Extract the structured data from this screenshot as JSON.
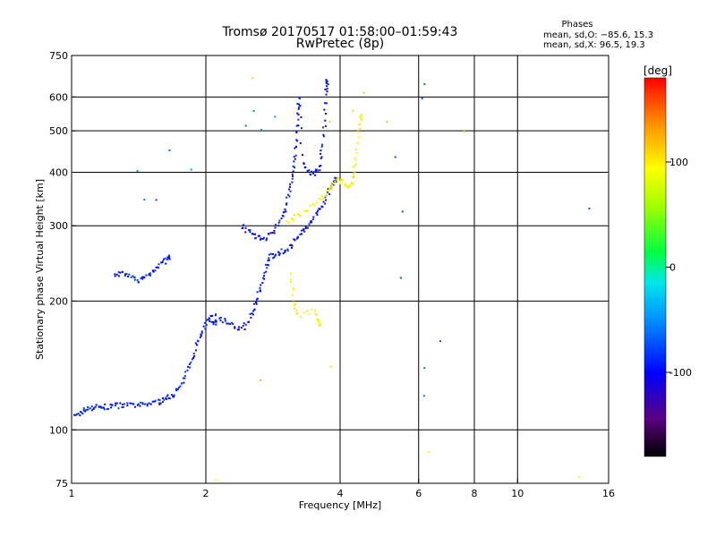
{
  "title": {
    "line1": "Tromsø 20170517 01:58:00–01:59:43",
    "line2": "RwPretec (8p)"
  },
  "stats": {
    "heading": "Phases",
    "line_o": "mean, sd,O: −85.6, 15.3",
    "line_x": "mean, sd,X:  96.5, 19.3"
  },
  "chart_data": {
    "type": "scatter",
    "xlabel": "Frequency [MHz]",
    "ylabel": "Stationary phase Virtual Height [km]",
    "x_scale": "log2",
    "y_scale": "log",
    "xlim": [
      1,
      16
    ],
    "ylim": [
      75,
      750
    ],
    "x_ticks": [
      1,
      2,
      4,
      6,
      8,
      10,
      16
    ],
    "y_ticks": [
      75,
      100,
      200,
      300,
      400,
      500,
      600,
      750
    ],
    "grid": true,
    "colorbar": {
      "label": "[deg]",
      "range": [
        -180,
        180
      ],
      "ticks": [
        100,
        0,
        -100
      ]
    },
    "series": [
      {
        "trace": "O-mode low-frequency E/F1 trace",
        "phase_deg": -90,
        "points": [
          [
            1.02,
            107
          ],
          [
            1.05,
            110
          ],
          [
            1.08,
            112
          ],
          [
            1.12,
            113
          ],
          [
            1.16,
            113
          ],
          [
            1.2,
            113
          ],
          [
            1.25,
            114
          ],
          [
            1.3,
            114
          ],
          [
            1.36,
            114
          ],
          [
            1.42,
            114
          ],
          [
            1.48,
            115
          ],
          [
            1.55,
            116
          ],
          [
            1.6,
            117
          ],
          [
            1.65,
            119
          ],
          [
            1.7,
            122
          ],
          [
            1.75,
            126
          ],
          [
            1.8,
            133
          ],
          [
            1.85,
            145
          ],
          [
            1.9,
            157
          ],
          [
            1.95,
            168
          ],
          [
            2.0,
            178
          ],
          [
            2.05,
            183
          ],
          [
            2.1,
            178
          ]
        ]
      },
      {
        "trace": "O-mode sporadic 230 km band",
        "phase_deg": -88,
        "points": [
          [
            1.25,
            232
          ],
          [
            1.3,
            231
          ],
          [
            1.35,
            228
          ],
          [
            1.4,
            224
          ],
          [
            1.45,
            226
          ],
          [
            1.5,
            232
          ],
          [
            1.55,
            240
          ],
          [
            1.6,
            246
          ],
          [
            1.65,
            252
          ]
        ]
      },
      {
        "trace": "O-mode F1 cusp cluster",
        "phase_deg": -92,
        "points": [
          [
            2.1,
            185
          ],
          [
            2.2,
            180
          ],
          [
            2.3,
            175
          ],
          [
            2.4,
            172
          ],
          [
            2.5,
            178
          ],
          [
            2.55,
            190
          ],
          [
            2.6,
            200
          ],
          [
            2.65,
            215
          ],
          [
            2.7,
            230
          ],
          [
            2.75,
            245
          ],
          [
            2.8,
            255
          ],
          [
            2.9,
            258
          ],
          [
            3.0,
            262
          ],
          [
            3.1,
            270
          ],
          [
            3.2,
            280
          ],
          [
            3.3,
            290
          ],
          [
            3.4,
            302
          ],
          [
            3.5,
            315
          ],
          [
            3.6,
            330
          ],
          [
            3.7,
            345
          ],
          [
            3.8,
            365
          ],
          [
            3.9,
            385
          ]
        ]
      },
      {
        "trace": "O-mode F2 rising trace",
        "phase_deg": -95,
        "points": [
          [
            2.4,
            300
          ],
          [
            2.5,
            290
          ],
          [
            2.6,
            282
          ],
          [
            2.7,
            280
          ],
          [
            2.8,
            285
          ],
          [
            2.9,
            300
          ],
          [
            3.0,
            320
          ],
          [
            3.05,
            345
          ],
          [
            3.1,
            375
          ],
          [
            3.15,
            410
          ],
          [
            3.18,
            450
          ],
          [
            3.2,
            500
          ],
          [
            3.22,
            560
          ],
          [
            3.24,
            600
          ],
          [
            3.3,
            420
          ],
          [
            3.4,
            400
          ],
          [
            3.5,
            398
          ],
          [
            3.6,
            410
          ],
          [
            3.65,
            460
          ],
          [
            3.7,
            530
          ],
          [
            3.72,
            620
          ],
          [
            3.74,
            650
          ]
        ]
      },
      {
        "trace": "X-mode trace",
        "phase_deg": 95,
        "points": [
          [
            3.05,
            305
          ],
          [
            3.2,
            315
          ],
          [
            3.4,
            330
          ],
          [
            3.6,
            345
          ],
          [
            3.75,
            360
          ],
          [
            3.85,
            375
          ],
          [
            3.95,
            385
          ],
          [
            4.05,
            380
          ],
          [
            4.15,
            372
          ],
          [
            4.25,
            378
          ],
          [
            4.3,
            400
          ],
          [
            4.35,
            440
          ],
          [
            4.4,
            490
          ],
          [
            4.45,
            540
          ],
          [
            3.1,
            230
          ],
          [
            3.15,
            200
          ],
          [
            3.2,
            185
          ],
          [
            3.5,
            190
          ],
          [
            3.6,
            178
          ]
        ]
      },
      {
        "trace": "scattered echoes",
        "phase_deg": -60,
        "points": [
          [
            1.4,
            400
          ],
          [
            1.45,
            350
          ],
          [
            1.55,
            345
          ],
          [
            1.65,
            455
          ],
          [
            1.85,
            400
          ],
          [
            2.45,
            520
          ],
          [
            2.55,
            560
          ],
          [
            2.65,
            510
          ],
          [
            2.85,
            540
          ],
          [
            5.3,
            440
          ],
          [
            5.5,
            320
          ],
          [
            6.2,
            640
          ],
          [
            6.1,
            590
          ],
          [
            14.5,
            330
          ],
          [
            6.15,
            140
          ],
          [
            6.2,
            120
          ],
          [
            5.5,
            225
          ],
          [
            6.7,
            160
          ]
        ]
      },
      {
        "trace": "scattered X-mode echoes",
        "phase_deg": 110,
        "points": [
          [
            2.55,
            670
          ],
          [
            4.5,
            610
          ],
          [
            5.1,
            520
          ],
          [
            7.6,
            500
          ],
          [
            4.3,
            550
          ],
          [
            3.8,
            520
          ],
          [
            6.3,
            90
          ],
          [
            13.8,
            78
          ],
          [
            2.1,
            77
          ],
          [
            2.65,
            130
          ],
          [
            3.8,
            140
          ]
        ]
      }
    ]
  }
}
